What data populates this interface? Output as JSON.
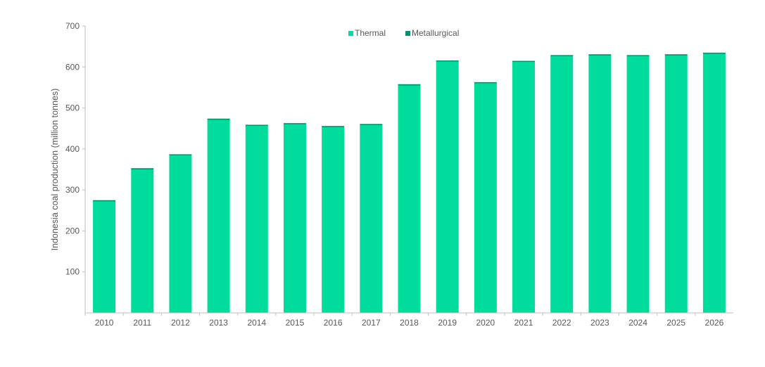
{
  "chart_data": {
    "type": "bar",
    "stacked": true,
    "title": "",
    "xlabel": "",
    "ylabel": "Indonesia  coal production (million tonnes)",
    "ylim": [
      0,
      700
    ],
    "yticks": [
      100,
      200,
      300,
      400,
      500,
      600,
      700
    ],
    "grid": false,
    "legend_position": "top-center",
    "categories": [
      "2010",
      "2011",
      "2012",
      "2013",
      "2014",
      "2015",
      "2016",
      "2017",
      "2018",
      "2019",
      "2020",
      "2021",
      "2022",
      "2023",
      "2024",
      "2025",
      "2026"
    ],
    "series": [
      {
        "name": "Thermal",
        "color": "#00DC9C",
        "values": [
          272,
          350,
          384,
          471,
          456,
          460,
          453,
          458,
          555,
          613,
          560,
          612,
          626,
          628,
          626,
          628,
          632
        ]
      },
      {
        "name": "Metallurgical",
        "color": "#0F8C6A",
        "values": [
          3,
          3,
          3,
          3,
          3,
          3,
          3,
          3,
          3,
          3,
          3,
          3,
          3,
          3,
          3,
          3,
          3
        ]
      }
    ]
  },
  "colors": {
    "axis": "#bfbfbf",
    "text": "#595959"
  }
}
